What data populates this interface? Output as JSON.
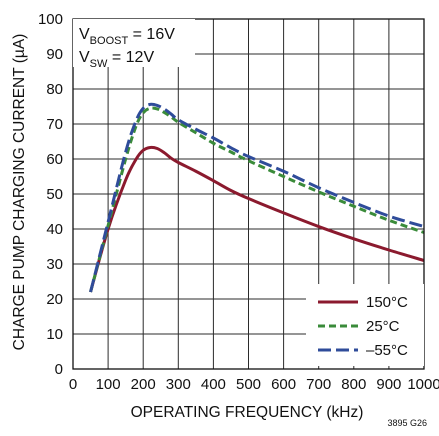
{
  "chart_data": {
    "type": "line",
    "xlabel": "OPERATING FREQUENCY (kHz)",
    "ylabel": "CHARGE PUMP CHARGING CURRENT (µA)",
    "xlim": [
      0,
      1000
    ],
    "ylim": [
      0,
      100
    ],
    "x_ticks": [
      "0",
      "100",
      "200",
      "300",
      "400",
      "500",
      "600",
      "700",
      "800",
      "900",
      "1000"
    ],
    "y_ticks": [
      "0",
      "10",
      "20",
      "30",
      "40",
      "50",
      "60",
      "70",
      "80",
      "90",
      "100"
    ],
    "grid": true,
    "conditions": [
      {
        "main": "V",
        "sub": "BOOST",
        "rest": " = 16V"
      },
      {
        "main": "V",
        "sub": "SW",
        "rest": " = 12V"
      }
    ],
    "legend_position": "bottom-right",
    "figure_id": "3895 G26",
    "series": [
      {
        "name": "150°C",
        "color": "#8b1a2e",
        "dash": "solid",
        "x": [
          50,
          100,
          150,
          180,
          200,
          220,
          240,
          260,
          280,
          300,
          350,
          400,
          450,
          500,
          600,
          700,
          800,
          900,
          1000
        ],
        "y": [
          22,
          40,
          54,
          60,
          62.5,
          63.3,
          63,
          61.8,
          60.2,
          59,
          56.5,
          53.8,
          51,
          48.7,
          44.6,
          40.7,
          37.2,
          34,
          31
        ]
      },
      {
        "name": "25°C",
        "color": "#3a8b3a",
        "dash": "short",
        "x": [
          50,
          100,
          150,
          180,
          200,
          220,
          240,
          260,
          280,
          300,
          350,
          400,
          450,
          500,
          600,
          700,
          800,
          900,
          1000
        ],
        "y": [
          22,
          41,
          60,
          69.5,
          73.2,
          74.5,
          74.3,
          73.3,
          72,
          70.5,
          67.5,
          64.5,
          62,
          59.5,
          55,
          50.6,
          46.5,
          42.5,
          39
        ]
      },
      {
        "name": "–55°C",
        "color": "#2f4c9a",
        "dash": "long",
        "x": [
          50,
          100,
          150,
          180,
          200,
          220,
          240,
          260,
          280,
          300,
          350,
          400,
          450,
          500,
          600,
          700,
          800,
          900,
          1000
        ],
        "y": [
          22,
          42,
          62,
          71,
          74.5,
          75.6,
          75.3,
          74.3,
          72.8,
          71.2,
          68.5,
          66,
          63.2,
          60.7,
          56.5,
          51.8,
          47.6,
          43.7,
          40.7
        ]
      }
    ]
  }
}
